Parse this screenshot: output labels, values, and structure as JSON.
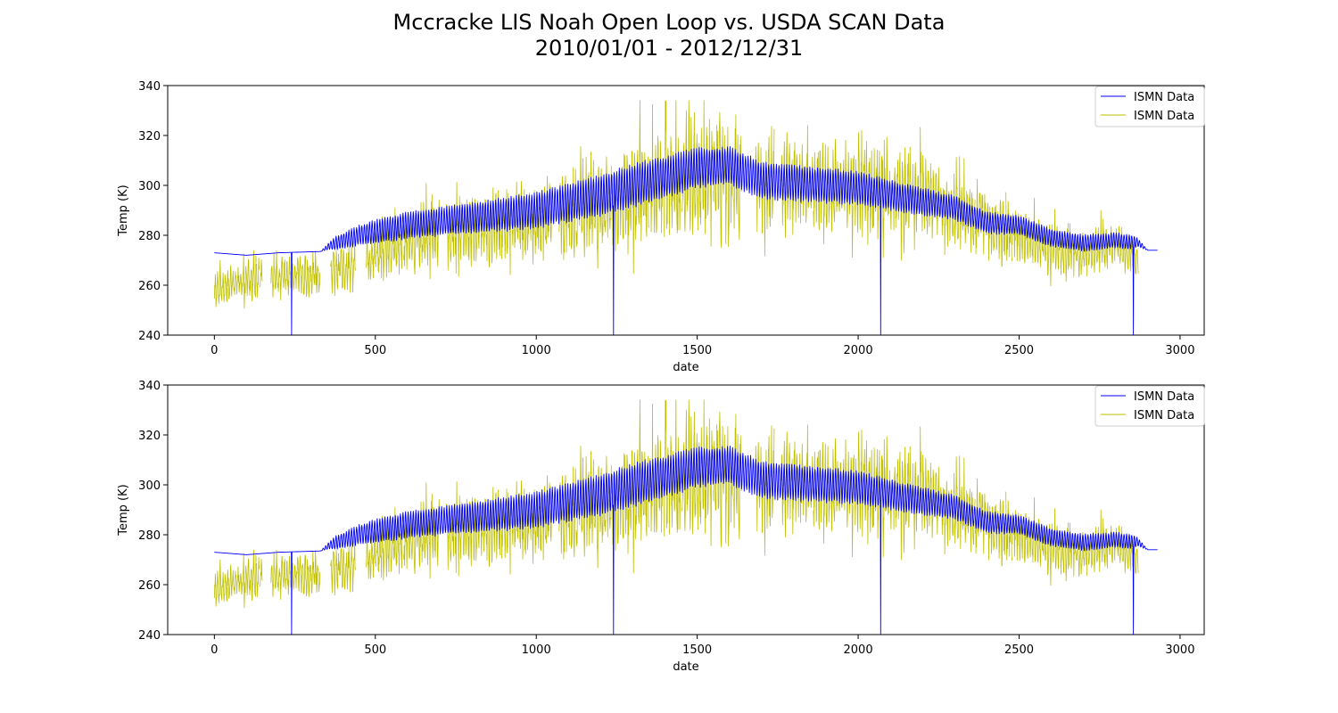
{
  "figure": {
    "title_line1": "Mccracke LIS Noah Open Loop vs. USDA SCAN Data",
    "title_line2": "2010/01/01 - 2012/12/31"
  },
  "chart_data": [
    {
      "type": "line",
      "xlabel": "date",
      "ylabel": "Temp (K)",
      "xlim": [
        -145,
        3075
      ],
      "ylim": [
        240,
        340
      ],
      "xticks": [
        0,
        500,
        1000,
        1500,
        2000,
        2500,
        3000
      ],
      "yticks": [
        240,
        260,
        280,
        300,
        320,
        340
      ],
      "grid": false,
      "legend_position": "top-right",
      "series": [
        {
          "name": "ISMN Data",
          "color": "#0000ff",
          "baseline": [
            [
              0,
              273
            ],
            [
              100,
              272
            ],
            [
              200,
              273
            ],
            [
              330,
              273.5
            ],
            [
              360,
              276
            ],
            [
              450,
              280
            ],
            [
              600,
              284
            ],
            [
              800,
              287
            ],
            [
              1000,
              290
            ],
            [
              1200,
              296
            ],
            [
              1300,
              300
            ],
            [
              1500,
              307
            ],
            [
              1600,
              308
            ],
            [
              1700,
              302
            ],
            [
              1900,
              300
            ],
            [
              2000,
              299
            ],
            [
              2100,
              296
            ],
            [
              2300,
              291
            ],
            [
              2400,
              285
            ],
            [
              2500,
              284
            ],
            [
              2600,
              279
            ],
            [
              2700,
              277
            ],
            [
              2800,
              278
            ],
            [
              2870,
              277
            ],
            [
              2900,
              274
            ],
            [
              2930,
              274
            ]
          ],
          "amplitude": [
            [
              0,
              0
            ],
            [
              330,
              0
            ],
            [
              380,
              3
            ],
            [
              500,
              5
            ],
            [
              900,
              7
            ],
            [
              1300,
              9
            ],
            [
              1600,
              8
            ],
            [
              2000,
              7
            ],
            [
              2300,
              5
            ],
            [
              2500,
              4
            ],
            [
              2850,
              3
            ],
            [
              2900,
              0
            ],
            [
              2930,
              0
            ]
          ],
          "dropouts": [
            240,
            1240,
            2070,
            2855
          ]
        },
        {
          "name": "ISMN Data",
          "color": "#bfbf00",
          "baseline": [
            [
              0,
              258
            ],
            [
              100,
              262
            ],
            [
              200,
              263
            ],
            [
              300,
              264
            ],
            [
              400,
              266
            ],
            [
              600,
              278
            ],
            [
              800,
              282
            ],
            [
              1000,
              286
            ],
            [
              1200,
              292
            ],
            [
              1400,
              300
            ],
            [
              1550,
              305
            ],
            [
              1700,
              300
            ],
            [
              2000,
              298
            ],
            [
              2200,
              295
            ],
            [
              2400,
              285
            ],
            [
              2500,
              280
            ],
            [
              2600,
              275
            ],
            [
              2700,
              272
            ],
            [
              2800,
              276
            ],
            [
              2850,
              272
            ],
            [
              2870,
              268
            ]
          ],
          "amplitude": [
            [
              0,
              8
            ],
            [
              400,
              10
            ],
            [
              600,
              14
            ],
            [
              1000,
              17
            ],
            [
              1300,
              22
            ],
            [
              1550,
              24
            ],
            [
              1800,
              18
            ],
            [
              2000,
              18
            ],
            [
              2300,
              16
            ],
            [
              2500,
              12
            ],
            [
              2700,
              10
            ],
            [
              2870,
              8
            ]
          ],
          "x_end": 2870,
          "gaps": [
            [
              150,
              175
            ],
            [
              330,
              360
            ],
            [
              440,
              470
            ],
            [
              700,
              720
            ],
            [
              1050,
              1070
            ],
            [
              1640,
              1680
            ],
            [
              1740,
              1760
            ]
          ]
        }
      ]
    },
    {
      "type": "line",
      "xlabel": "date",
      "ylabel": "Temp (K)",
      "xlim": [
        -145,
        3075
      ],
      "ylim": [
        240,
        340
      ],
      "xticks": [
        0,
        500,
        1000,
        1500,
        2000,
        2500,
        3000
      ],
      "yticks": [
        240,
        260,
        280,
        300,
        320,
        340
      ],
      "grid": false,
      "legend_position": "top-right",
      "series": [
        {
          "name": "ISMN Data",
          "color": "#0000ff",
          "baseline": [
            [
              0,
              273
            ],
            [
              100,
              272
            ],
            [
              200,
              273
            ],
            [
              330,
              273.5
            ],
            [
              360,
              276
            ],
            [
              450,
              280
            ],
            [
              600,
              284
            ],
            [
              800,
              287
            ],
            [
              1000,
              290
            ],
            [
              1200,
              296
            ],
            [
              1300,
              300
            ],
            [
              1500,
              307
            ],
            [
              1600,
              308
            ],
            [
              1700,
              302
            ],
            [
              1900,
              300
            ],
            [
              2000,
              299
            ],
            [
              2100,
              296
            ],
            [
              2300,
              291
            ],
            [
              2400,
              285
            ],
            [
              2500,
              284
            ],
            [
              2600,
              279
            ],
            [
              2700,
              277
            ],
            [
              2800,
              278
            ],
            [
              2870,
              277
            ],
            [
              2900,
              274
            ],
            [
              2930,
              274
            ]
          ],
          "amplitude": [
            [
              0,
              0
            ],
            [
              330,
              0
            ],
            [
              380,
              3
            ],
            [
              500,
              5
            ],
            [
              900,
              7
            ],
            [
              1300,
              9
            ],
            [
              1600,
              8
            ],
            [
              2000,
              7
            ],
            [
              2300,
              5
            ],
            [
              2500,
              4
            ],
            [
              2850,
              3
            ],
            [
              2900,
              0
            ],
            [
              2930,
              0
            ]
          ],
          "dropouts": [
            240,
            1240,
            2070,
            2855
          ]
        },
        {
          "name": "ISMN Data",
          "color": "#bfbf00",
          "baseline": [
            [
              0,
              258
            ],
            [
              100,
              262
            ],
            [
              200,
              263
            ],
            [
              300,
              264
            ],
            [
              400,
              266
            ],
            [
              600,
              278
            ],
            [
              800,
              282
            ],
            [
              1000,
              286
            ],
            [
              1200,
              292
            ],
            [
              1400,
              300
            ],
            [
              1550,
              305
            ],
            [
              1700,
              300
            ],
            [
              2000,
              298
            ],
            [
              2200,
              295
            ],
            [
              2400,
              285
            ],
            [
              2500,
              280
            ],
            [
              2600,
              275
            ],
            [
              2700,
              272
            ],
            [
              2800,
              276
            ],
            [
              2850,
              272
            ],
            [
              2870,
              268
            ]
          ],
          "amplitude": [
            [
              0,
              8
            ],
            [
              400,
              10
            ],
            [
              600,
              14
            ],
            [
              1000,
              17
            ],
            [
              1300,
              22
            ],
            [
              1550,
              24
            ],
            [
              1800,
              18
            ],
            [
              2000,
              18
            ],
            [
              2300,
              16
            ],
            [
              2500,
              12
            ],
            [
              2700,
              10
            ],
            [
              2870,
              8
            ]
          ],
          "x_end": 2870,
          "gaps": [
            [
              150,
              175
            ],
            [
              330,
              360
            ],
            [
              440,
              470
            ],
            [
              700,
              720
            ],
            [
              1050,
              1070
            ],
            [
              1640,
              1680
            ],
            [
              1740,
              1760
            ]
          ]
        }
      ]
    }
  ]
}
